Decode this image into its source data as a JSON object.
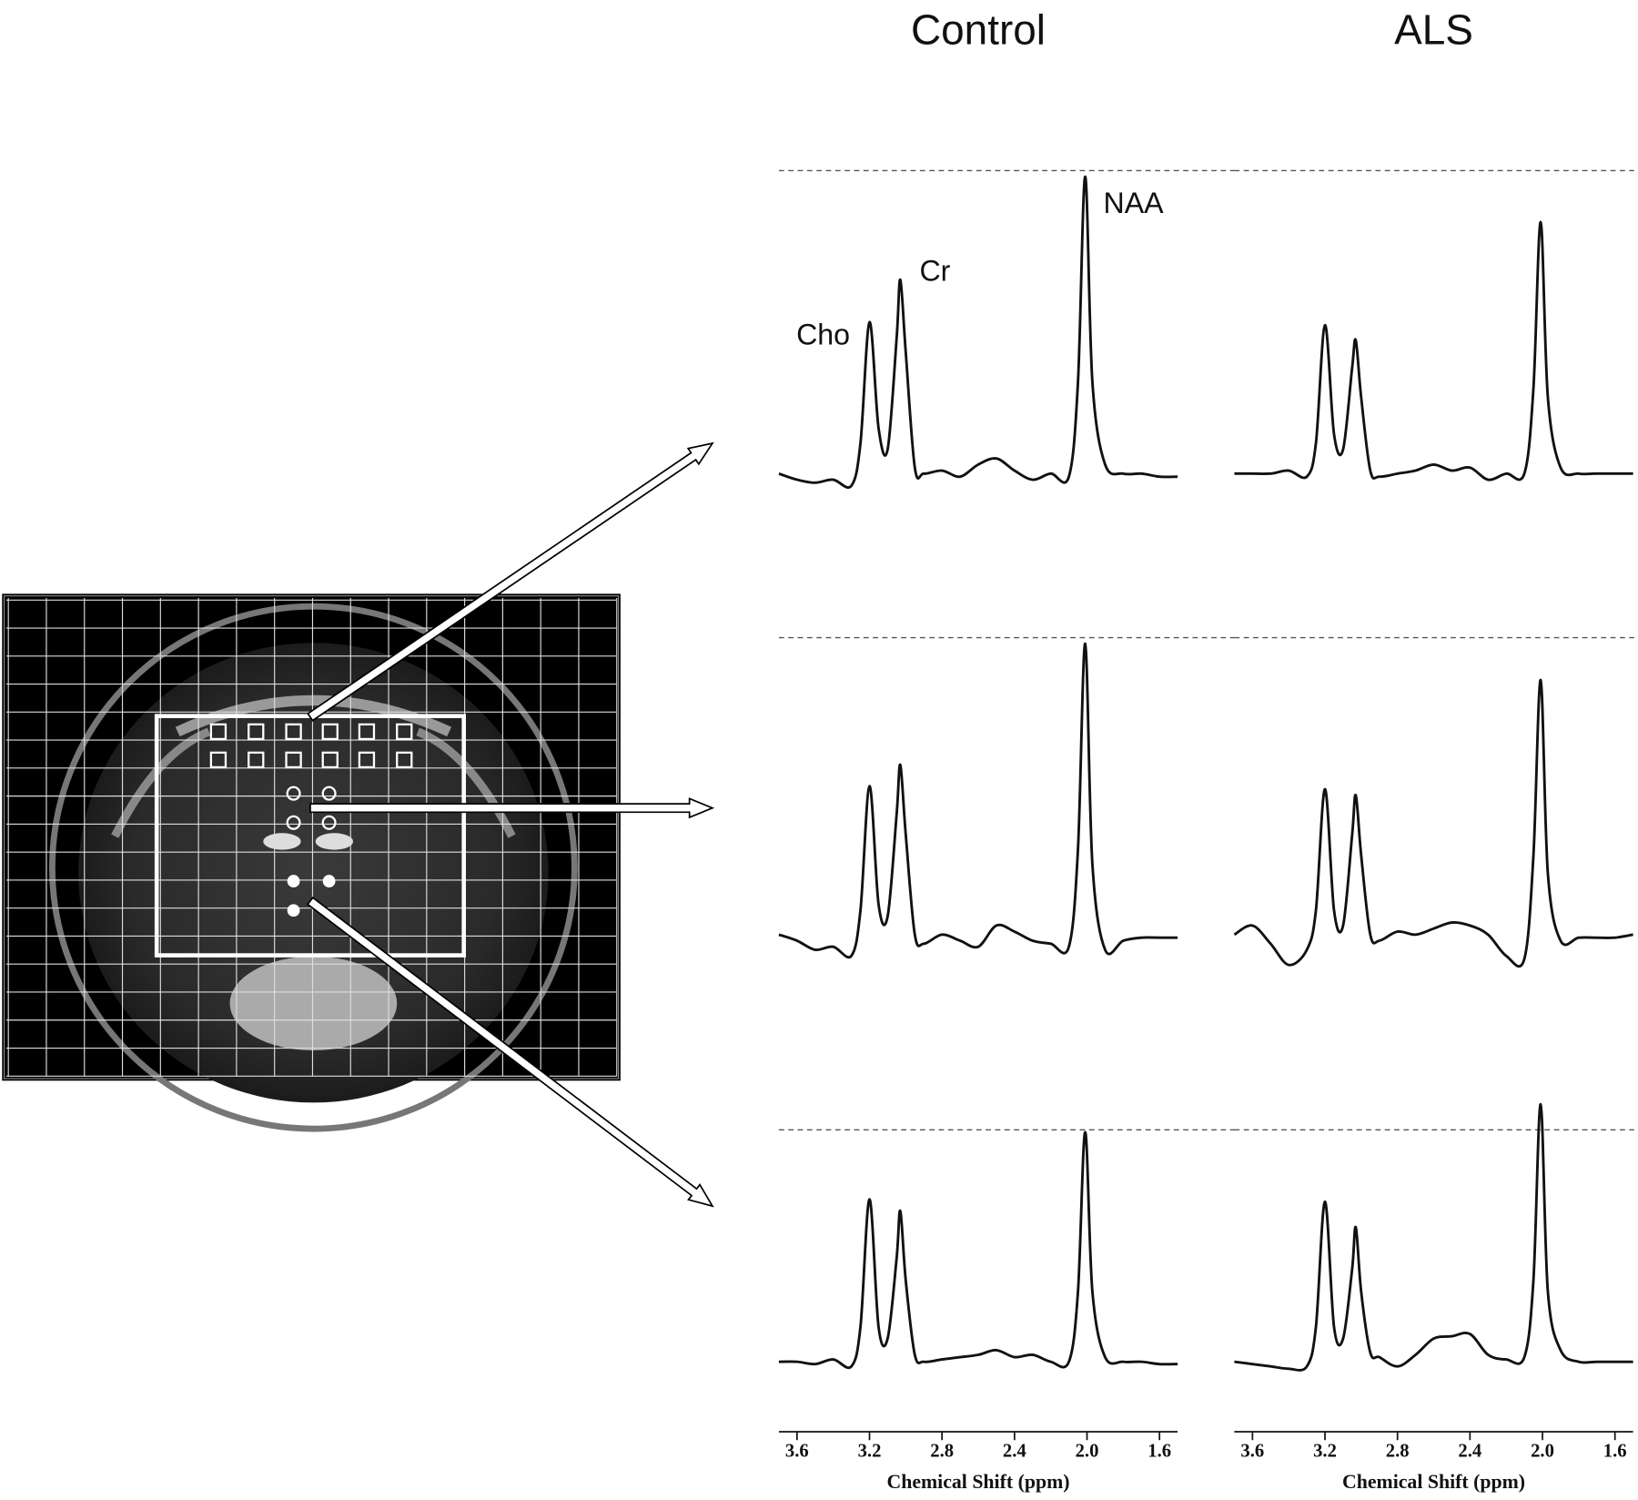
{
  "chart_data": [
    {
      "type": "line",
      "title": "Control",
      "xlim": [
        3.7,
        1.5
      ],
      "ref_line": 100,
      "annotations": [
        "Cho",
        "Cr",
        "NAA"
      ],
      "x": [
        3.7,
        3.6,
        3.5,
        3.4,
        3.3,
        3.25,
        3.2,
        3.15,
        3.1,
        3.05,
        3.03,
        3.0,
        2.95,
        2.9,
        2.8,
        2.7,
        2.6,
        2.5,
        2.4,
        2.3,
        2.2,
        2.1,
        2.05,
        2.01,
        1.97,
        1.9,
        1.8,
        1.7,
        1.6,
        1.5
      ],
      "values": [
        0,
        -2,
        -3,
        -2,
        -4,
        10,
        50,
        15,
        8,
        45,
        64,
        40,
        2,
        0,
        1,
        -1,
        3,
        5,
        1,
        -2,
        0,
        -1,
        30,
        98,
        30,
        3,
        0,
        0,
        -1,
        -1
      ]
    },
    {
      "type": "line",
      "title": "ALS",
      "xlim": [
        3.7,
        1.5
      ],
      "ref_line": 100,
      "x": [
        3.7,
        3.6,
        3.5,
        3.4,
        3.3,
        3.25,
        3.2,
        3.15,
        3.1,
        3.05,
        3.03,
        3.0,
        2.95,
        2.9,
        2.8,
        2.7,
        2.6,
        2.5,
        2.4,
        2.3,
        2.2,
        2.1,
        2.05,
        2.01,
        1.97,
        1.9,
        1.8,
        1.7,
        1.6,
        1.5
      ],
      "values": [
        0,
        0,
        0,
        1,
        -1,
        10,
        49,
        13,
        8,
        35,
        44,
        25,
        1,
        -1,
        0,
        1,
        3,
        1,
        2,
        -2,
        0,
        0,
        28,
        83,
        25,
        2,
        0,
        0,
        0,
        0
      ]
    },
    {
      "type": "line",
      "xlim": [
        3.7,
        1.5
      ],
      "ref_line": 100,
      "x": [
        3.7,
        3.6,
        3.5,
        3.4,
        3.3,
        3.25,
        3.2,
        3.15,
        3.1,
        3.05,
        3.03,
        3.0,
        2.95,
        2.9,
        2.8,
        2.7,
        2.6,
        2.5,
        2.4,
        2.3,
        2.2,
        2.1,
        2.05,
        2.01,
        1.97,
        1.9,
        1.8,
        1.7,
        1.6,
        1.5
      ],
      "values": [
        2,
        0,
        -3,
        -2,
        -5,
        10,
        51,
        12,
        8,
        42,
        58,
        35,
        2,
        -1,
        2,
        0,
        -2,
        5,
        3,
        0,
        -1,
        -2,
        30,
        98,
        25,
        -3,
        0,
        1,
        1,
        1
      ]
    },
    {
      "type": "line",
      "xlim": [
        3.7,
        1.5
      ],
      "ref_line": 100,
      "x": [
        3.7,
        3.6,
        3.5,
        3.4,
        3.3,
        3.25,
        3.2,
        3.15,
        3.1,
        3.05,
        3.03,
        3.0,
        2.95,
        2.9,
        2.8,
        2.7,
        2.6,
        2.5,
        2.4,
        2.3,
        2.2,
        2.1,
        2.05,
        2.01,
        1.97,
        1.9,
        1.8,
        1.7,
        1.6,
        1.5
      ],
      "values": [
        2,
        5,
        -1,
        -8,
        -3,
        10,
        50,
        10,
        5,
        35,
        48,
        28,
        2,
        0,
        3,
        2,
        4,
        6,
        5,
        2,
        -5,
        -6,
        28,
        86,
        22,
        0,
        1,
        1,
        1,
        2
      ]
    },
    {
      "type": "line",
      "xlim": [
        3.7,
        1.5
      ],
      "ref_line": 100,
      "xlabel": "Chemical Shift (ppm)",
      "xticks": [
        3.6,
        3.2,
        2.8,
        2.4,
        {
          "value": 2,
          "label": "2.0"
        },
        1.6
      ],
      "x": [
        3.7,
        3.6,
        3.5,
        3.4,
        3.3,
        3.25,
        3.2,
        3.15,
        3.1,
        3.05,
        3.03,
        3.0,
        2.95,
        2.9,
        2.8,
        2.7,
        2.6,
        2.5,
        2.4,
        2.3,
        2.2,
        2.1,
        2.05,
        2.01,
        1.97,
        1.9,
        1.8,
        1.7,
        1.6,
        1.5
      ],
      "values": [
        0,
        0,
        -1,
        1,
        -2,
        15,
        70,
        15,
        10,
        45,
        65,
        35,
        3,
        0,
        1,
        2,
        3,
        5,
        2,
        3,
        0,
        0,
        30,
        99,
        30,
        2,
        0,
        0,
        -1,
        -1
      ]
    },
    {
      "type": "line",
      "xlim": [
        3.7,
        1.5
      ],
      "ref_line": 100,
      "xlabel": "Chemical Shift (ppm)",
      "xticks": [
        3.6,
        3.2,
        2.8,
        2.4,
        {
          "value": 2,
          "label": "2.0"
        },
        1.6
      ],
      "x": [
        3.7,
        3.6,
        3.5,
        3.4,
        3.3,
        3.25,
        3.2,
        3.15,
        3.1,
        3.05,
        3.03,
        3.0,
        2.95,
        2.9,
        2.8,
        2.7,
        2.6,
        2.5,
        2.4,
        2.3,
        2.2,
        2.1,
        2.05,
        2.01,
        1.97,
        1.9,
        1.8,
        1.7,
        1.6,
        1.5
      ],
      "values": [
        0,
        -1,
        -2,
        -3,
        -2,
        15,
        69,
        15,
        10,
        40,
        58,
        30,
        4,
        2,
        -2,
        3,
        10,
        11,
        12,
        3,
        1,
        2,
        35,
        111,
        30,
        5,
        0,
        0,
        0,
        0
      ]
    }
  ]
}
